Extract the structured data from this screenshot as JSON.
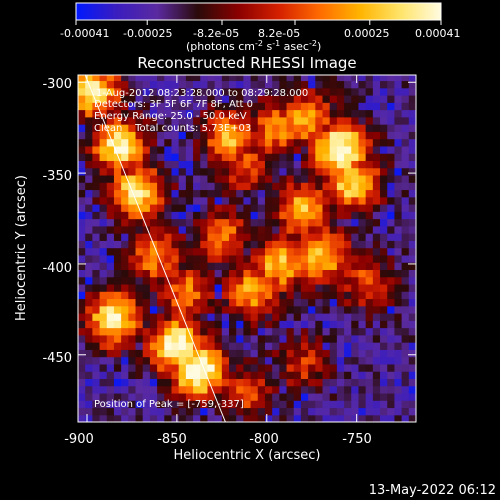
{
  "colors": {
    "background": "#000000",
    "foreground": "#ffffff",
    "limb": "#ffffff",
    "colormap": [
      "#0018ff",
      "#3a1dbf",
      "#5a2aa0",
      "#2a0a0a",
      "#8a0000",
      "#d42000",
      "#ff6a00",
      "#ffb400",
      "#ffe46a",
      "#fffbe0"
    ]
  },
  "colorbar": {
    "ticks": [
      "-0.00041",
      "-0.00025",
      "-8.2e-05",
      "8.2e-05",
      "0.00025",
      "0.00041"
    ],
    "values": [
      -0.00041,
      -0.00025,
      -8.2e-05,
      8.2e-05,
      0.00025,
      0.00041
    ],
    "units": "(photons cm",
    "units_sup1": "-2",
    "units_mid": " s",
    "units_sup2": "-1",
    "units_end": " asec",
    "units_sup3": "-2",
    "units_close": ")"
  },
  "chart_data": {
    "type": "heatmap",
    "title": "Reconstructed RHESSI Image",
    "xlabel": "Heliocentric X (arcsec)",
    "ylabel": "Heliocentric Y (arcsec)",
    "xlim": [
      -905,
      -717
    ],
    "ylim": [
      -487,
      -296
    ],
    "xticks": [
      -900,
      -850,
      -800,
      -750
    ],
    "xtick_labels": [
      "-900",
      "-850",
      "-800",
      "-750"
    ],
    "yticks": [
      -300,
      -350,
      -400,
      -450
    ],
    "ytick_labels": [
      "-300",
      "-350",
      "-400",
      "-450"
    ],
    "cmap_range": [
      -0.00041,
      0.00041
    ],
    "annotations": [
      "1-Aug-2012 08:23:28.000 to 08:29:28.000",
      "Detectors: 3F 5F 6F 7F 8F, Att 0",
      "Energy Range: 25.0 - 50.0 keV",
      "Clean    Total counts: 5.73E+03"
    ],
    "peak_label": "Position of Peak = [-759,-337]",
    "peak": [
      -759,
      -337
    ],
    "limb_line": [
      [
        -901,
        -296
      ],
      [
        -823,
        -487
      ]
    ],
    "bright_regions": [
      {
        "x": -882,
        "y": -335,
        "level": 0.85
      },
      {
        "x": -872,
        "y": -360,
        "level": 0.8
      },
      {
        "x": -862,
        "y": -395,
        "level": 0.6
      },
      {
        "x": -845,
        "y": -415,
        "level": 0.55
      },
      {
        "x": -850,
        "y": -445,
        "level": 0.95
      },
      {
        "x": -838,
        "y": -458,
        "level": 1.0
      },
      {
        "x": -885,
        "y": -430,
        "level": 0.85
      },
      {
        "x": -896,
        "y": -305,
        "level": 0.8
      },
      {
        "x": -820,
        "y": -330,
        "level": 0.7
      },
      {
        "x": -795,
        "y": -325,
        "level": 0.6
      },
      {
        "x": -778,
        "y": -320,
        "level": 0.65
      },
      {
        "x": -759,
        "y": -337,
        "level": 1.0
      },
      {
        "x": -752,
        "y": -355,
        "level": 0.8
      },
      {
        "x": -780,
        "y": -370,
        "level": 0.7
      },
      {
        "x": -770,
        "y": -395,
        "level": 0.75
      },
      {
        "x": -793,
        "y": -400,
        "level": 0.7
      },
      {
        "x": -808,
        "y": -415,
        "level": 0.65
      },
      {
        "x": -825,
        "y": -385,
        "level": 0.55
      },
      {
        "x": -812,
        "y": -345,
        "level": 0.5
      },
      {
        "x": -745,
        "y": -410,
        "level": 0.45
      },
      {
        "x": -810,
        "y": -470,
        "level": 0.45
      },
      {
        "x": -780,
        "y": -455,
        "level": 0.4
      }
    ]
  },
  "timestamp": "13-May-2022 06:12"
}
